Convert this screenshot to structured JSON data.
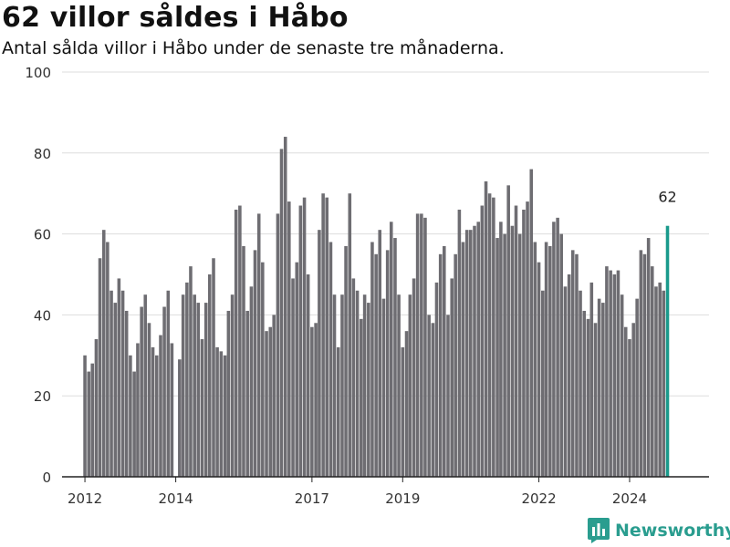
{
  "header": {
    "title": "62 villor såldes i Håbo",
    "subtitle": "Antal sålda villor i Håbo under de senaste tre månaderna."
  },
  "branding": {
    "name": "Newsworthy",
    "logo_icon": "bar-chart-logo-icon"
  },
  "colors": {
    "bar": "#6e6d72",
    "highlight": "#1a9a8c",
    "grid": "#dddddd",
    "axis": "#222222",
    "tick_text": "#333333"
  },
  "chart_data": {
    "type": "bar",
    "title": "62 villor såldes i Håbo",
    "subtitle": "Antal sålda villor i Håbo under de senaste tre månaderna.",
    "xlabel": "",
    "ylabel": "",
    "ylim": [
      0,
      100
    ],
    "y_ticks": [
      0,
      20,
      40,
      60,
      80,
      100
    ],
    "grid": true,
    "x_range": [
      "2011-07-01",
      "2025-10-01"
    ],
    "x_ticks": [
      {
        "label": "2012",
        "date": "2012-01-01"
      },
      {
        "label": "2014",
        "date": "2014-01-01"
      },
      {
        "label": "2017",
        "date": "2017-01-01"
      },
      {
        "label": "2019",
        "date": "2019-01-01"
      },
      {
        "label": "2022",
        "date": "2022-01-01"
      },
      {
        "label": "2024",
        "date": "2024-01-01"
      }
    ],
    "bar_period": "month",
    "x_start": "2012-01",
    "values": [
      30,
      26,
      28,
      34,
      54,
      61,
      58,
      46,
      43,
      49,
      46,
      41,
      30,
      26,
      33,
      42,
      45,
      38,
      32,
      30,
      35,
      42,
      46,
      33,
      null,
      29,
      45,
      48,
      52,
      45,
      43,
      34,
      43,
      50,
      54,
      32,
      31,
      30,
      41,
      45,
      66,
      67,
      57,
      41,
      47,
      56,
      65,
      53,
      36,
      37,
      40,
      65,
      81,
      84,
      68,
      49,
      53,
      67,
      69,
      50,
      37,
      38,
      61,
      70,
      69,
      58,
      45,
      32,
      45,
      57,
      70,
      49,
      46,
      39,
      45,
      43,
      58,
      55,
      61,
      44,
      56,
      63,
      59,
      45,
      32,
      36,
      45,
      49,
      65,
      65,
      64,
      40,
      38,
      48,
      55,
      57,
      40,
      49,
      55,
      66,
      58,
      61,
      61,
      62,
      63,
      67,
      73,
      70,
      69,
      59,
      63,
      60,
      72,
      62,
      67,
      60,
      66,
      68,
      76,
      58,
      53,
      46,
      58,
      57,
      63,
      64,
      60,
      47,
      50,
      56,
      55,
      46,
      41,
      39,
      48,
      38,
      44,
      43,
      52,
      51,
      50,
      51,
      45,
      37,
      34,
      38,
      44,
      56,
      55,
      59,
      52,
      47,
      48,
      46,
      62
    ],
    "highlight_last": true,
    "annotation": {
      "label": "62",
      "target": "last"
    }
  }
}
